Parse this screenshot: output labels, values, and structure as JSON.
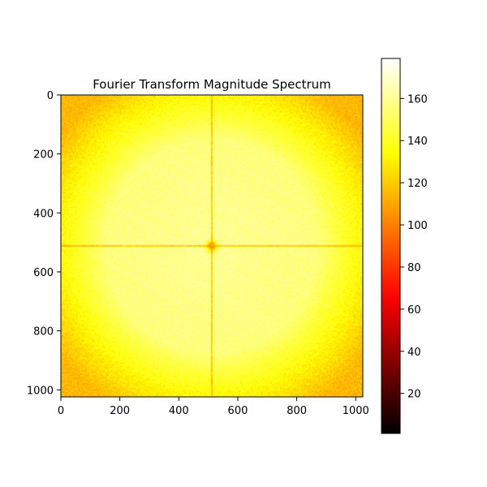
{
  "chart_data": {
    "type": "heatmap",
    "title": "Fourier Transform Magnitude Spectrum",
    "xlabel": "",
    "ylabel": "",
    "image_size": [
      1024,
      1024
    ],
    "xlim": [
      0,
      1024
    ],
    "ylim": [
      1024,
      0
    ],
    "x_ticks": [
      0,
      200,
      400,
      600,
      800,
      1000
    ],
    "y_ticks": [
      0,
      200,
      400,
      600,
      800,
      1000
    ],
    "colormap": "hot",
    "colorbar": {
      "range": [
        1,
        179
      ],
      "ticks": [
        20,
        40,
        60,
        80,
        100,
        120,
        140,
        160
      ]
    },
    "features": {
      "center": [
        512,
        512
      ],
      "center_value": 95,
      "center_blob_radius": 12,
      "bright_region_value": 155,
      "bright_region_radius": 500,
      "corner_value": 115,
      "cross_line_value": 110,
      "noise_std": 7
    }
  }
}
